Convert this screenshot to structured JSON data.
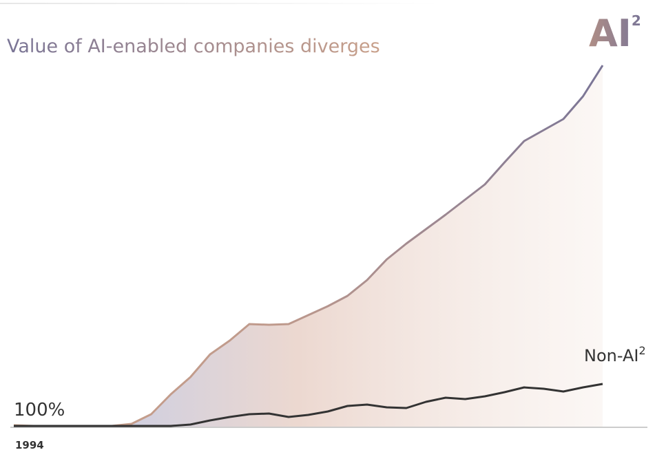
{
  "chart_data": {
    "type": "line",
    "title": "Value of AI-enabled companies diverges",
    "baseline": {
      "value": 100,
      "label": "100%"
    },
    "categories": [
      "1994",
      null,
      null,
      null,
      null,
      null,
      null,
      null,
      null,
      null,
      null,
      null,
      null,
      null,
      null,
      null,
      null,
      null,
      null,
      null,
      null,
      null,
      null,
      null,
      null,
      null,
      null,
      null,
      null,
      null,
      null
    ],
    "series": [
      {
        "name": "AI",
        "footnote": "2",
        "color": "#7a7596",
        "start_color": "#c9a08a",
        "values": [
          108,
          104,
          104,
          104,
          100,
          104,
          116,
          172,
          288,
          388,
          520,
          600,
          696,
          692,
          696,
          748,
          800,
          860,
          952,
          1072,
          1164,
          1248,
          1332,
          1420,
          1508,
          1636,
          1760,
          1824,
          1888,
          2020,
          2200
        ]
      },
      {
        "name": "Non-AI",
        "footnote": "2",
        "color": "#333333",
        "values": [
          104,
          104,
          104,
          104,
          104,
          104,
          104,
          104,
          104,
          112,
          136,
          156,
          172,
          176,
          156,
          168,
          188,
          220,
          228,
          212,
          208,
          244,
          268,
          260,
          276,
          300,
          328,
          320,
          304,
          328,
          348
        ]
      }
    ]
  }
}
